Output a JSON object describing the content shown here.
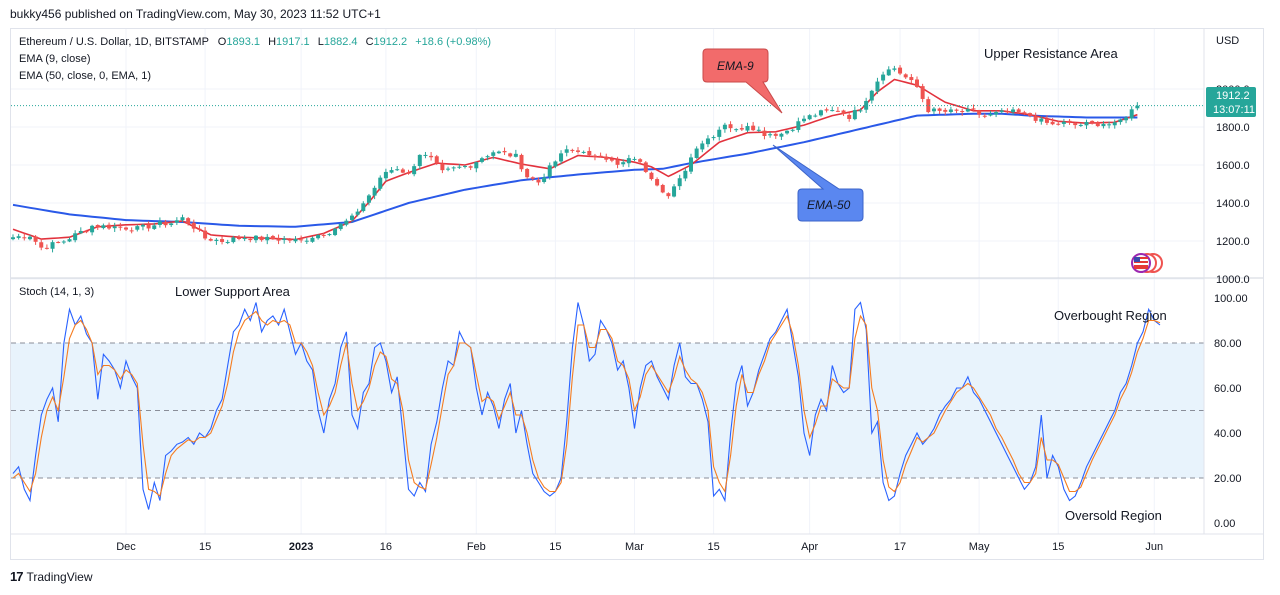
{
  "header": {
    "published": "bukky456 published on TradingView.com, May 30, 2023 11:52 UTC+1"
  },
  "footer": {
    "logo_glyph": "17",
    "brand": "TradingView"
  },
  "colors": {
    "up": "#26a69a",
    "down": "#ef5350",
    "ema9": "#e2323d",
    "ema50": "#2a59e8",
    "stoch_k": "#2962ff",
    "stoch_d": "#f57c20",
    "band": "#e8f3fc",
    "ema9_callout": "#f26b6b",
    "ema50_callout": "#5a87f0",
    "price_tag": "#26a69a"
  },
  "legend": {
    "symbol": "Ethereum / U.S. Dollar, 1D, BITSTAMP",
    "o_label": "O",
    "o": "1893.1",
    "h_label": "H",
    "h": "1917.1",
    "l_label": "L",
    "l": "1882.4",
    "c_label": "C",
    "c": "1912.2",
    "change": "+18.6 (+0.98%)",
    "ema9": "EMA (9, close)",
    "ema50": "EMA (50, close, 0, EMA, 1)",
    "stoch": "Stoch (14, 1, 3)"
  },
  "annotations": {
    "upper": "Upper Resistance Area",
    "lower": "Lower Support Area",
    "overbought": "Overbought Region",
    "oversold": "Oversold Region",
    "ema9": "EMA-9",
    "ema50": "EMA-50"
  },
  "price_tag": {
    "price": "1912.2",
    "countdown": "13:07:11"
  },
  "chart_data": [
    {
      "type": "candlestick",
      "title": "Ethereum / U.S. Dollar, 1D, BITSTAMP",
      "y_unit": "USD",
      "ylim": [
        950,
        2290
      ],
      "y_ticks": [
        1000,
        1200,
        1400,
        1600,
        1800,
        2000
      ],
      "y_tick_labels": [
        "1000.0",
        "1200.0",
        "1400.0",
        "1600.0",
        "1800.0",
        "2000.0"
      ],
      "x_ticks": [
        {
          "label": "Dec",
          "i": 20
        },
        {
          "label": "15",
          "i": 34
        },
        {
          "label": "2023",
          "i": 51
        },
        {
          "label": "16",
          "i": 66
        },
        {
          "label": "Feb",
          "i": 82
        },
        {
          "label": "15",
          "i": 96
        },
        {
          "label": "Mar",
          "i": 110
        },
        {
          "label": "15",
          "i": 124
        },
        {
          "label": "Apr",
          "i": 141
        },
        {
          "label": "17",
          "i": 157
        },
        {
          "label": "May",
          "i": 171
        },
        {
          "label": "15",
          "i": 185
        },
        {
          "label": "Jun",
          "i": 202
        }
      ],
      "last_price": 1912.2,
      "anchors": [
        [
          0,
          1220
        ],
        [
          3,
          1230
        ],
        [
          5,
          1165
        ],
        [
          9,
          1200
        ],
        [
          14,
          1280
        ],
        [
          18,
          1275
        ],
        [
          22,
          1265
        ],
        [
          26,
          1290
        ],
        [
          28,
          1295
        ],
        [
          30,
          1320
        ],
        [
          32,
          1275
        ],
        [
          34,
          1215
        ],
        [
          37,
          1200
        ],
        [
          41,
          1220
        ],
        [
          45,
          1210
        ],
        [
          48,
          1210
        ],
        [
          51,
          1200
        ],
        [
          53,
          1225
        ],
        [
          56,
          1250
        ],
        [
          60,
          1320
        ],
        [
          63,
          1440
        ],
        [
          66,
          1565
        ],
        [
          68,
          1585
        ],
        [
          70,
          1550
        ],
        [
          72,
          1660
        ],
        [
          74,
          1630
        ],
        [
          76,
          1560
        ],
        [
          78,
          1580
        ],
        [
          81,
          1600
        ],
        [
          83,
          1640
        ],
        [
          85,
          1670
        ],
        [
          87,
          1660
        ],
        [
          89,
          1645
        ],
        [
          91,
          1540
        ],
        [
          93,
          1510
        ],
        [
          96,
          1620
        ],
        [
          98,
          1680
        ],
        [
          100,
          1680
        ],
        [
          102,
          1640
        ],
        [
          104,
          1660
        ],
        [
          107,
          1595
        ],
        [
          110,
          1640
        ],
        [
          113,
          1540
        ],
        [
          116,
          1435
        ],
        [
          118,
          1520
        ],
        [
          121,
          1700
        ],
        [
          124,
          1760
        ],
        [
          126,
          1820
        ],
        [
          128,
          1780
        ],
        [
          130,
          1815
        ],
        [
          133,
          1765
        ],
        [
          136,
          1765
        ],
        [
          138,
          1800
        ],
        [
          140,
          1845
        ],
        [
          143,
          1875
        ],
        [
          146,
          1890
        ],
        [
          148,
          1855
        ],
        [
          150,
          1900
        ],
        [
          152,
          2000
        ],
        [
          154,
          2090
        ],
        [
          156,
          2110
        ],
        [
          158,
          2060
        ],
        [
          160,
          2010
        ],
        [
          162,
          1890
        ],
        [
          164,
          1880
        ],
        [
          167,
          1880
        ],
        [
          170,
          1880
        ],
        [
          172,
          1855
        ],
        [
          174,
          1870
        ],
        [
          176,
          1880
        ],
        [
          178,
          1875
        ],
        [
          180,
          1860
        ],
        [
          182,
          1830
        ],
        [
          184,
          1810
        ],
        [
          186,
          1820
        ],
        [
          188,
          1810
        ],
        [
          190,
          1815
        ],
        [
          193,
          1820
        ],
        [
          195,
          1810
        ],
        [
          197,
          1860
        ],
        [
          198,
          1893
        ],
        [
          199,
          1912
        ]
      ],
      "ema9_anchors": [
        [
          0,
          1262
        ],
        [
          5,
          1210
        ],
        [
          10,
          1220
        ],
        [
          15,
          1275
        ],
        [
          20,
          1285
        ],
        [
          25,
          1290
        ],
        [
          30,
          1305
        ],
        [
          35,
          1232
        ],
        [
          40,
          1220
        ],
        [
          45,
          1215
        ],
        [
          50,
          1208
        ],
        [
          55,
          1240
        ],
        [
          60,
          1305
        ],
        [
          63,
          1405
        ],
        [
          66,
          1515
        ],
        [
          70,
          1560
        ],
        [
          75,
          1610
        ],
        [
          80,
          1600
        ],
        [
          85,
          1640
        ],
        [
          90,
          1605
        ],
        [
          95,
          1580
        ],
        [
          100,
          1650
        ],
        [
          105,
          1640
        ],
        [
          110,
          1615
        ],
        [
          113,
          1590
        ],
        [
          116,
          1540
        ],
        [
          120,
          1600
        ],
        [
          125,
          1720
        ],
        [
          130,
          1770
        ],
        [
          135,
          1775
        ],
        [
          140,
          1810
        ],
        [
          145,
          1860
        ],
        [
          150,
          1890
        ],
        [
          153,
          1985
        ],
        [
          156,
          2050
        ],
        [
          160,
          2020
        ],
        [
          165,
          1930
        ],
        [
          170,
          1885
        ],
        [
          175,
          1885
        ],
        [
          180,
          1865
        ],
        [
          185,
          1830
        ],
        [
          190,
          1820
        ],
        [
          195,
          1825
        ],
        [
          199,
          1865
        ]
      ],
      "ema50_anchors": [
        [
          0,
          1390
        ],
        [
          10,
          1340
        ],
        [
          20,
          1310
        ],
        [
          30,
          1300
        ],
        [
          40,
          1280
        ],
        [
          50,
          1275
        ],
        [
          60,
          1300
        ],
        [
          70,
          1400
        ],
        [
          80,
          1470
        ],
        [
          90,
          1520
        ],
        [
          100,
          1550
        ],
        [
          110,
          1575
        ],
        [
          115,
          1580
        ],
        [
          120,
          1610
        ],
        [
          130,
          1660
        ],
        [
          140,
          1720
        ],
        [
          150,
          1790
        ],
        [
          160,
          1860
        ],
        [
          170,
          1870
        ],
        [
          175,
          1870
        ],
        [
          180,
          1860
        ],
        [
          190,
          1850
        ],
        [
          199,
          1850
        ]
      ]
    },
    {
      "type": "line",
      "title": "Stoch (14, 1, 3)",
      "ylim": [
        -5,
        105
      ],
      "y_ticks": [
        0,
        20,
        40,
        60,
        80,
        100
      ],
      "y_tick_labels": [
        "0.00",
        "20.00",
        "40.00",
        "60.00",
        "80.00",
        "100.00"
      ],
      "overbought": 80,
      "middle": 50,
      "oversold": 20,
      "series": [
        {
          "name": "%K",
          "values": [
            22,
            25,
            15,
            10,
            30,
            48,
            55,
            60,
            45,
            80,
            95,
            88,
            92,
            84,
            80,
            55,
            75,
            72,
            68,
            60,
            72,
            65,
            60,
            15,
            6,
            18,
            10,
            30,
            32,
            35,
            36,
            38,
            35,
            40,
            38,
            42,
            50,
            55,
            70,
            85,
            88,
            95,
            90,
            98,
            85,
            90,
            92,
            88,
            95,
            85,
            75,
            80,
            72,
            68,
            50,
            40,
            55,
            62,
            78,
            85,
            48,
            42,
            58,
            62,
            78,
            80,
            72,
            58,
            65,
            40,
            15,
            12,
            18,
            14,
            35,
            45,
            60,
            72,
            70,
            85,
            80,
            78,
            60,
            48,
            58,
            52,
            42,
            55,
            62,
            40,
            50,
            35,
            22,
            18,
            14,
            12,
            14,
            20,
            45,
            78,
            98,
            88,
            72,
            75,
            90,
            86,
            80,
            68,
            72,
            60,
            42,
            60,
            70,
            72,
            65,
            60,
            55,
            70,
            80,
            65,
            62,
            62,
            55,
            45,
            12,
            15,
            10,
            40,
            62,
            70,
            52,
            58,
            68,
            75,
            82,
            85,
            90,
            95,
            80,
            65,
            40,
            30,
            48,
            55,
            50,
            70,
            62,
            58,
            60,
            95,
            98,
            86,
            40,
            45,
            18,
            10,
            12,
            22,
            30,
            35,
            40,
            35,
            38,
            42,
            48,
            52,
            55,
            60,
            60,
            65,
            58,
            55,
            50,
            45,
            40,
            35,
            30,
            25,
            20,
            15,
            18,
            25,
            48,
            20,
            30,
            25,
            15,
            10,
            12,
            18,
            25,
            30,
            35,
            40,
            45,
            50,
            58,
            62,
            70,
            80,
            85,
            95,
            90,
            88
          ]
        },
        {
          "name": "%D",
          "values": [
            20,
            22,
            18,
            14,
            22,
            38,
            50,
            56,
            50,
            65,
            82,
            88,
            90,
            86,
            80,
            66,
            70,
            70,
            68,
            64,
            68,
            66,
            62,
            35,
            15,
            14,
            12,
            22,
            30,
            33,
            35,
            37,
            36,
            38,
            38,
            40,
            46,
            52,
            62,
            76,
            85,
            90,
            92,
            94,
            90,
            88,
            90,
            89,
            90,
            88,
            80,
            80,
            76,
            70,
            58,
            48,
            52,
            58,
            70,
            80,
            62,
            50,
            54,
            60,
            70,
            76,
            74,
            64,
            62,
            50,
            28,
            18,
            16,
            15,
            26,
            38,
            52,
            66,
            70,
            80,
            80,
            78,
            66,
            54,
            56,
            54,
            46,
            52,
            58,
            48,
            48,
            40,
            28,
            20,
            16,
            14,
            14,
            18,
            35,
            65,
            88,
            88,
            78,
            78,
            86,
            86,
            82,
            72,
            70,
            64,
            50,
            56,
            66,
            70,
            66,
            62,
            58,
            65,
            74,
            68,
            64,
            62,
            58,
            50,
            25,
            18,
            14,
            30,
            52,
            66,
            58,
            58,
            66,
            72,
            80,
            84,
            88,
            92,
            84,
            70,
            50,
            38,
            44,
            52,
            52,
            64,
            62,
            60,
            60,
            82,
            92,
            88,
            60,
            50,
            28,
            16,
            14,
            18,
            26,
            32,
            38,
            36,
            38,
            40,
            45,
            50,
            54,
            58,
            60,
            62,
            60,
            56,
            52,
            48,
            42,
            38,
            33,
            28,
            22,
            18,
            18,
            22,
            38,
            28,
            28,
            26,
            20,
            14,
            14,
            16,
            22,
            28,
            33,
            38,
            43,
            48,
            55,
            60,
            67,
            76,
            82,
            90,
            90,
            89
          ]
        }
      ]
    }
  ]
}
